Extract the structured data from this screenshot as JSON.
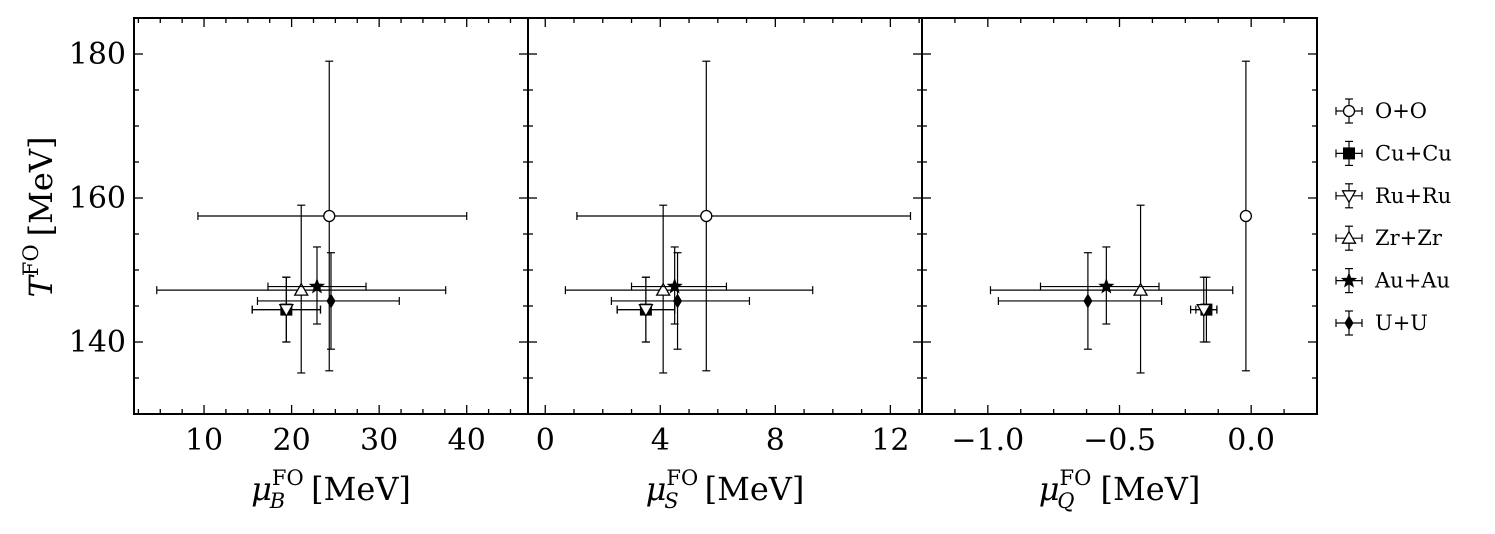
{
  "chart_data": {
    "type": "scatter",
    "y_axis": {
      "label": "T^FO [MeV]",
      "label_main": "T",
      "label_sup": "FO",
      "label_unit": "[MeV]",
      "ylim": [
        130,
        185
      ],
      "ticks": [
        140,
        160,
        180
      ]
    },
    "panels": [
      {
        "key": "muB",
        "xlabel": "μ_B^FO [MeV]",
        "label_main": "μ",
        "label_sub": "B",
        "label_sup": "FO",
        "label_unit": "[MeV]",
        "xlim": [
          2,
          47
        ],
        "ticks": [
          10,
          20,
          30,
          40
        ],
        "tick_labels": [
          "10",
          "20",
          "30",
          "40"
        ]
      },
      {
        "key": "muS",
        "xlabel": "μ_S^FO [MeV]",
        "label_main": "μ",
        "label_sub": "S",
        "label_sup": "FO",
        "label_unit": "[MeV]",
        "xlim": [
          -0.6,
          13.1
        ],
        "ticks": [
          0,
          4,
          8,
          12
        ],
        "tick_labels": [
          "0",
          "4",
          "8",
          "12"
        ]
      },
      {
        "key": "muQ",
        "xlabel": "μ_Q^FO [MeV]",
        "label_main": "μ",
        "label_sub": "Q",
        "label_sup": "FO",
        "label_unit": "[MeV]",
        "xlim": [
          -1.25,
          0.25
        ],
        "ticks": [
          -1.0,
          -0.5,
          0.0
        ],
        "tick_labels": [
          "−1.0",
          "−0.5",
          "0.0"
        ]
      }
    ],
    "series": [
      {
        "name": "O+O",
        "marker": "circle-open",
        "T": 157.5,
        "T_err": [
          21.5,
          21.5
        ],
        "muB": 24.3,
        "muB_err": [
          15.0,
          15.7
        ],
        "muS": 5.6,
        "muS_err": [
          4.5,
          7.1
        ],
        "muQ": -0.02,
        "muQ_err": [
          0.0,
          0.0
        ]
      },
      {
        "name": "Cu+Cu",
        "marker": "square-filled",
        "T": 144.5,
        "T_err": [
          4.5,
          4.5
        ],
        "muB": 19.4,
        "muB_err": [
          3.9,
          3.9
        ],
        "muS": 3.5,
        "muS_err": [
          1.0,
          1.0
        ],
        "muQ": -0.17,
        "muQ_err": [
          0.04,
          0.04
        ]
      },
      {
        "name": "Ru+Ru",
        "marker": "triangle-down-open",
        "T": 144.5,
        "T_err": [
          4.5,
          4.5
        ],
        "muB": 19.4,
        "muB_err": [
          3.9,
          3.9
        ],
        "muS": 3.5,
        "muS_err": [
          1.0,
          1.0
        ],
        "muQ": -0.18,
        "muQ_err": [
          0.05,
          0.05
        ]
      },
      {
        "name": "Zr+Zr",
        "marker": "triangle-up-open",
        "T": 147.2,
        "T_err": [
          11.5,
          11.8
        ],
        "muB": 21.1,
        "muB_err": [
          16.5,
          16.5
        ],
        "muS": 4.1,
        "muS_err": [
          3.4,
          5.2
        ],
        "muQ": -0.42,
        "muQ_err": [
          0.57,
          0.35
        ]
      },
      {
        "name": "Au+Au",
        "marker": "star-filled",
        "T": 147.7,
        "T_err": [
          5.2,
          5.5
        ],
        "muB": 22.9,
        "muB_err": [
          5.6,
          5.6
        ],
        "muS": 4.5,
        "muS_err": [
          1.5,
          1.8
        ],
        "muQ": -0.55,
        "muQ_err": [
          0.25,
          0.2
        ]
      },
      {
        "name": "U+U",
        "marker": "diamond-filled",
        "T": 145.7,
        "T_err": [
          6.7,
          6.7
        ],
        "muB": 24.5,
        "muB_err": [
          8.4,
          7.8
        ],
        "muS": 4.6,
        "muS_err": [
          2.3,
          2.5
        ],
        "muQ": -0.62,
        "muQ_err": [
          0.34,
          0.28
        ]
      }
    ],
    "legend": {
      "position": "right"
    },
    "grid": false
  }
}
